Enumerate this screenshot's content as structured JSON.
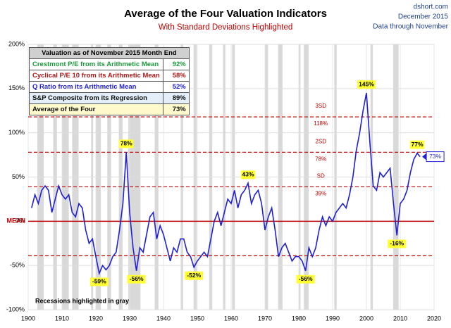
{
  "chart_data": {
    "type": "line",
    "title": "Average of the Four Valuation Indicators",
    "subtitle": "With Standard Deviations Highlighted",
    "source": [
      "dshort.com",
      "December 2015",
      "Data through November"
    ],
    "note": "Recessions highlighted in gray",
    "color": "#1f1fd6",
    "x": [
      1901,
      1902,
      1903,
      1904,
      1905,
      1906,
      1907,
      1908,
      1909,
      1910,
      1911,
      1912,
      1913,
      1914,
      1915,
      1916,
      1917,
      1918,
      1919,
      1920,
      1921,
      1922,
      1923,
      1924,
      1925,
      1926,
      1927,
      1928,
      1929,
      1930,
      1931,
      1932,
      1933,
      1934,
      1935,
      1936,
      1937,
      1938,
      1939,
      1940,
      1941,
      1942,
      1943,
      1944,
      1945,
      1946,
      1947,
      1948,
      1949,
      1950,
      1951,
      1952,
      1953,
      1954,
      1955,
      1956,
      1957,
      1958,
      1959,
      1960,
      1961,
      1962,
      1963,
      1964,
      1965,
      1966,
      1967,
      1968,
      1969,
      1970,
      1971,
      1972,
      1973,
      1974,
      1975,
      1976,
      1977,
      1978,
      1979,
      1980,
      1981,
      1982,
      1983,
      1984,
      1985,
      1986,
      1987,
      1988,
      1989,
      1990,
      1991,
      1992,
      1993,
      1994,
      1995,
      1996,
      1997,
      1998,
      1999,
      2000,
      2001,
      2002,
      2003,
      2004,
      2005,
      2006,
      2007,
      2008,
      2009,
      2010,
      2011,
      2012,
      2013,
      2014,
      2015,
      2015.85
    ],
    "values": [
      15,
      30,
      20,
      35,
      40,
      35,
      10,
      25,
      40,
      30,
      25,
      30,
      10,
      5,
      20,
      15,
      -10,
      -25,
      -20,
      -40,
      -59,
      -50,
      -55,
      -50,
      -40,
      -35,
      -10,
      20,
      78,
      10,
      -30,
      -56,
      -30,
      -35,
      -15,
      5,
      10,
      -20,
      -5,
      -15,
      -30,
      -45,
      -30,
      -35,
      -20,
      -20,
      -35,
      -40,
      -52,
      -45,
      -40,
      -35,
      -40,
      -20,
      0,
      10,
      -5,
      10,
      25,
      20,
      35,
      15,
      30,
      35,
      43,
      20,
      30,
      35,
      20,
      -10,
      5,
      15,
      -10,
      -40,
      -30,
      -25,
      -35,
      -45,
      -40,
      -40,
      -45,
      -56,
      -30,
      -40,
      -30,
      -10,
      5,
      -5,
      5,
      0,
      10,
      15,
      20,
      15,
      30,
      50,
      80,
      100,
      125,
      145,
      90,
      40,
      35,
      55,
      50,
      55,
      60,
      20,
      -16,
      20,
      25,
      35,
      55,
      70,
      77,
      73
    ],
    "value_labels": [
      null,
      null,
      null,
      null,
      null,
      null,
      null,
      null,
      null,
      null,
      null,
      null,
      null,
      null,
      null,
      null,
      null,
      null,
      null,
      null,
      "-59%",
      null,
      null,
      null,
      null,
      null,
      null,
      null,
      "78%",
      null,
      null,
      "-56%",
      null,
      null,
      null,
      null,
      null,
      null,
      null,
      null,
      null,
      null,
      null,
      null,
      null,
      null,
      null,
      null,
      "-52%",
      null,
      null,
      null,
      null,
      null,
      null,
      null,
      null,
      null,
      null,
      null,
      null,
      null,
      null,
      null,
      "43%",
      null,
      null,
      null,
      null,
      null,
      null,
      null,
      null,
      null,
      null,
      null,
      null,
      null,
      null,
      null,
      null,
      "-56%",
      null,
      null,
      null,
      null,
      null,
      null,
      null,
      null,
      null,
      null,
      null,
      null,
      null,
      null,
      null,
      null,
      null,
      "145%",
      null,
      null,
      null,
      null,
      null,
      null,
      null,
      null,
      "-16%",
      null,
      null,
      null,
      null,
      null,
      "77%",
      "73%"
    ],
    "recessions": [
      [
        1902.7,
        1904.6
      ],
      [
        1907.4,
        1908.5
      ],
      [
        1910,
        1912
      ],
      [
        1913,
        1914.9
      ],
      [
        1918.6,
        1919.2
      ],
      [
        1920,
        1921.5
      ],
      [
        1923.4,
        1924.5
      ],
      [
        1926.8,
        1927.9
      ],
      [
        1929.6,
        1933.2
      ],
      [
        1937.4,
        1938.5
      ],
      [
        1945.1,
        1945.8
      ],
      [
        1948.9,
        1949.8
      ],
      [
        1953.5,
        1954.4
      ],
      [
        1957.6,
        1958.3
      ],
      [
        1960.3,
        1961.1
      ],
      [
        1969.9,
        1970.9
      ],
      [
        1973.9,
        1975.2
      ],
      [
        1980,
        1980.5
      ],
      [
        1981.5,
        1982.9
      ],
      [
        1990.5,
        1991.2
      ],
      [
        2001.2,
        2001.9
      ],
      [
        2007.9,
        2009.5
      ]
    ],
    "mean_label": "MEAN",
    "bands": [
      {
        "name": "3SD",
        "value": 118,
        "label": "118%"
      },
      {
        "name": "2SD",
        "value": 78,
        "label": "78%"
      },
      {
        "name": "SD",
        "value": 39,
        "label": "39%"
      },
      {
        "value": -39
      }
    ],
    "xlim": [
      1900,
      2020
    ],
    "xticks": [
      1900,
      1910,
      1920,
      1930,
      1940,
      1950,
      1960,
      1970,
      1980,
      1990,
      2000,
      2010,
      2020
    ],
    "ylim": [
      -100,
      200
    ],
    "yticks": [
      {
        "value": -100,
        "label": "-100%"
      },
      {
        "value": -50,
        "label": "-50%"
      },
      {
        "value": 0,
        "label": "0%"
      },
      {
        "value": 50,
        "label": "50%"
      },
      {
        "value": 100,
        "label": "100%"
      },
      {
        "value": 150,
        "label": "150%"
      },
      {
        "value": 200,
        "label": "200%"
      }
    ],
    "grid": true,
    "table": {
      "header": "Valuation as of November 2015 Month End",
      "rows": [
        {
          "cells": [
            "Crestmont P/E from its Arithmetic Mean",
            "92%"
          ],
          "color": "#1a9b3a",
          "background": "#ffffff"
        },
        {
          "cells": [
            "Cyclical P/E 10 from its Arithmetic Mean",
            "58%"
          ],
          "color": "#b01818",
          "background": "#ffffff"
        },
        {
          "cells": [
            "Q Ratio from its Arithmetic Mean",
            "52%"
          ],
          "color": "#1f1fd6",
          "background": "#ffffff"
        },
        {
          "cells": [
            "S&P Composite from its Regression",
            "89%"
          ],
          "color": "#111111",
          "background": "#e3eef8"
        },
        {
          "cells": [
            "Average of the Four",
            "73%"
          ],
          "color": "#111111",
          "background": "#fff9cc"
        }
      ]
    }
  }
}
